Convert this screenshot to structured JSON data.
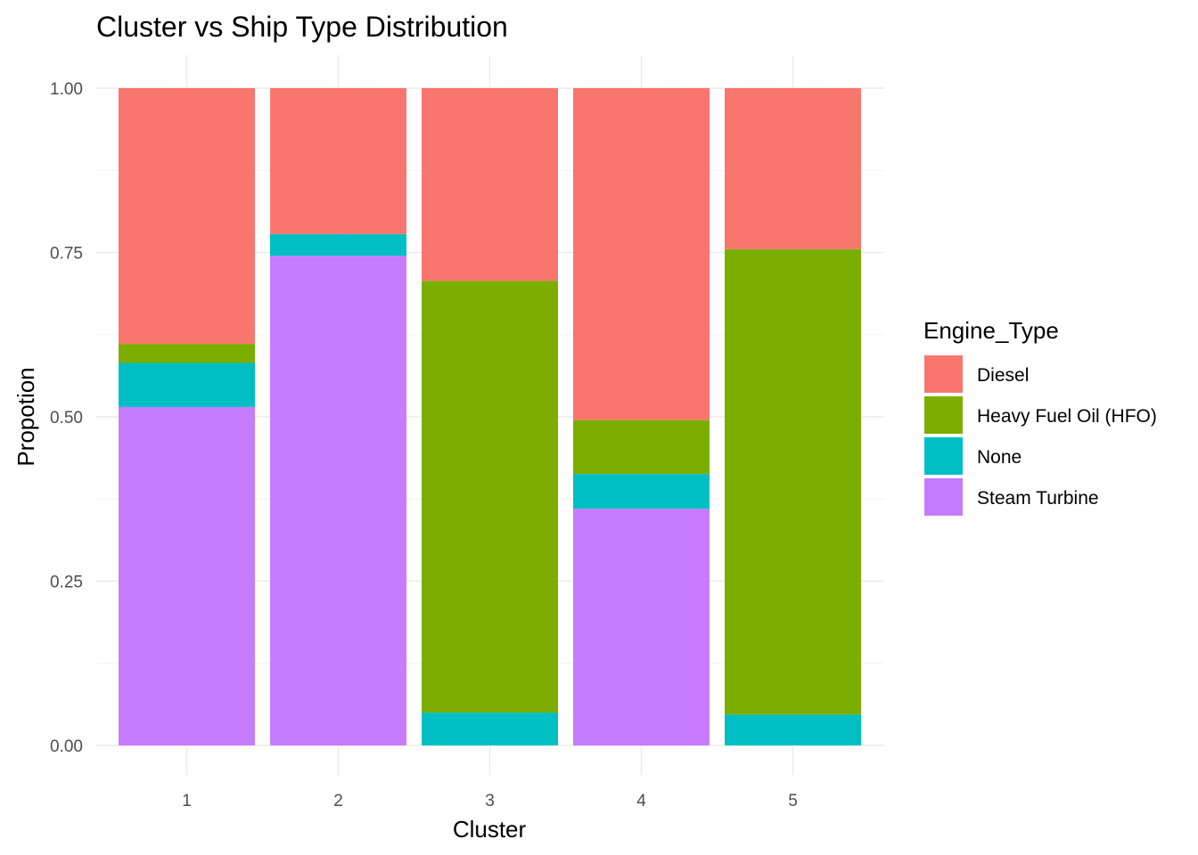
{
  "chart_data": {
    "type": "bar",
    "stacked": true,
    "title": "Cluster vs Ship Type Distribution",
    "xlabel": "Cluster",
    "ylabel": "Propotion",
    "categories": [
      "1",
      "2",
      "3",
      "4",
      "5"
    ],
    "ylim": [
      0,
      1
    ],
    "yticks": [
      "0.00",
      "0.25",
      "0.50",
      "0.75",
      "1.00"
    ],
    "grid": true,
    "legend": {
      "title": "Engine_Type",
      "position": "right"
    },
    "series": [
      {
        "name": "Steam Turbine",
        "color": "#C77CFF",
        "values": [
          0.515,
          0.745,
          0.0,
          0.36,
          0.0
        ]
      },
      {
        "name": "None",
        "color": "#00BFC4",
        "values": [
          0.067,
          0.033,
          0.05,
          0.053,
          0.047
        ]
      },
      {
        "name": "Heavy Fuel Oil (HFO)",
        "color": "#7CAE00",
        "values": [
          0.029,
          0.0,
          0.657,
          0.082,
          0.708
        ]
      },
      {
        "name": "Diesel",
        "color": "#F8766D",
        "values": [
          0.389,
          0.222,
          0.293,
          0.505,
          0.245
        ]
      }
    ],
    "legend_order": [
      "Diesel",
      "Heavy Fuel Oil (HFO)",
      "None",
      "Steam Turbine"
    ]
  }
}
